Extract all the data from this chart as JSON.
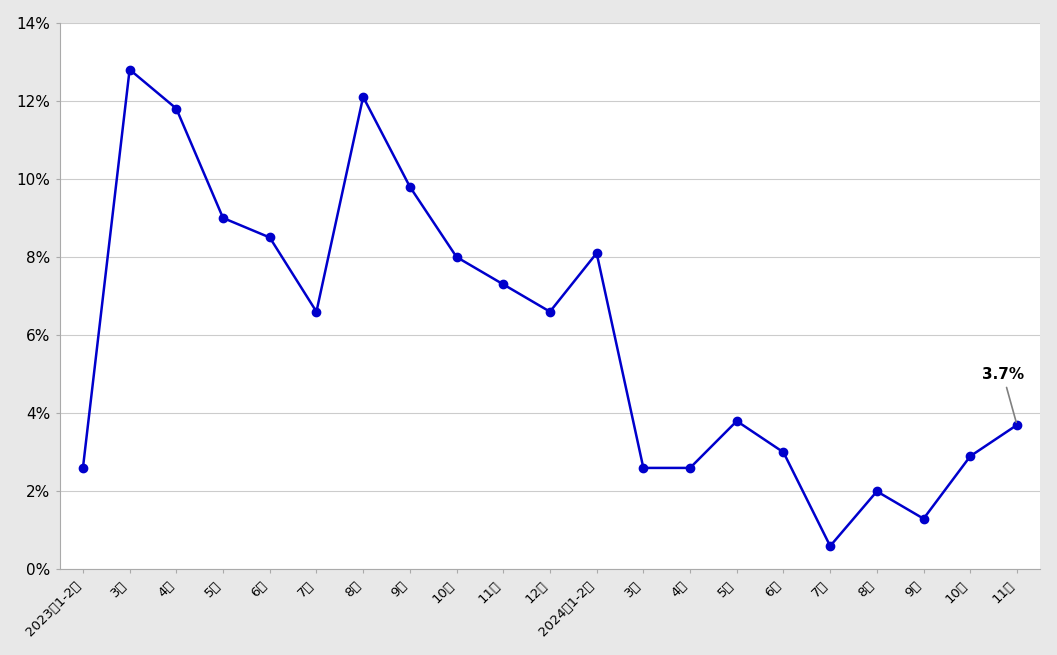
{
  "labels": [
    "2023年1-2月",
    "3月",
    "4月",
    "5月",
    "6月",
    "7月",
    "8月",
    "9月",
    "10月",
    "11月",
    "12月",
    "2024年1-2月",
    "3月",
    "4月",
    "5月",
    "6月",
    "7月",
    "8月",
    "9月",
    "10月",
    "11月"
  ],
  "values": [
    2.6,
    12.8,
    11.8,
    9.0,
    8.5,
    6.6,
    12.1,
    9.8,
    8.0,
    7.3,
    6.6,
    8.1,
    2.6,
    2.6,
    3.8,
    3.0,
    0.6,
    2.0,
    1.3,
    2.9,
    3.7
  ],
  "line_color": "#0000CC",
  "marker_color": "#0000CC",
  "marker_size": 6,
  "line_width": 1.8,
  "annotation_text": "3.7%",
  "annotation_index": 20,
  "ylim": [
    0,
    14
  ],
  "yticks": [
    0,
    2,
    4,
    6,
    8,
    10,
    12,
    14
  ],
  "ytick_labels": [
    "0%",
    "2%",
    "4%",
    "6%",
    "8%",
    "10%",
    "12%",
    "14%"
  ],
  "background_color": "#e8e8e8",
  "plot_background": "#ffffff",
  "figsize": [
    10.57,
    6.55
  ]
}
